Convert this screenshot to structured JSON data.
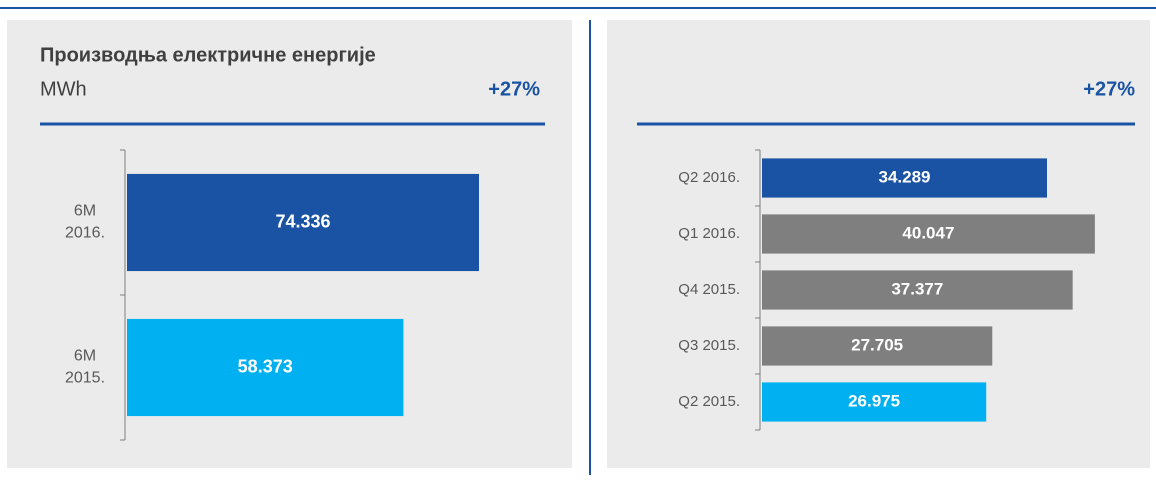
{
  "chart_data": [
    {
      "type": "barh",
      "title": "Производња електричне енергије",
      "subtitle": "MWh",
      "annotation": "+27%",
      "categories": [
        "6M\n2016.",
        "6M\n2015."
      ],
      "values": [
        74336,
        58373
      ],
      "value_labels": [
        "74.336",
        "58.373"
      ],
      "colors": [
        "#1a53a3",
        "#00b0f0"
      ]
    },
    {
      "type": "barh",
      "annotation": "+27%",
      "categories": [
        "Q2 2016.",
        "Q1 2016.",
        "Q4 2015.",
        "Q3 2015.",
        "Q2 2015."
      ],
      "values": [
        34289,
        40047,
        37377,
        27705,
        26975
      ],
      "value_labels": [
        "34.289",
        "40.047",
        "37.377",
        "27.705",
        "26.975"
      ],
      "colors": [
        "#1a53a3",
        "#7f7f7f",
        "#7f7f7f",
        "#7f7f7f",
        "#00b0f0"
      ]
    }
  ]
}
